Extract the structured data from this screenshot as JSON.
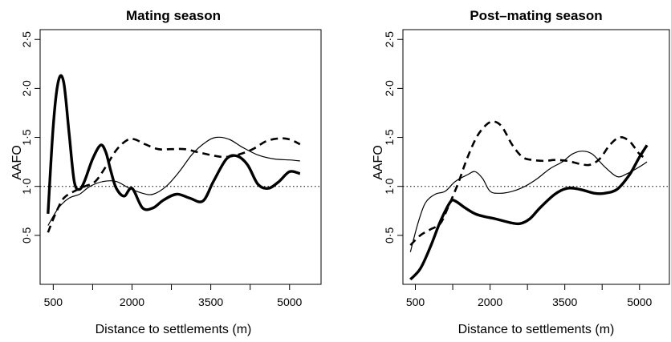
{
  "chart_data": [
    {
      "type": "line",
      "title": "Mating season",
      "xlabel": "Distance to settlements (m)",
      "ylabel": "AAFO",
      "xlim": [
        250,
        5600
      ],
      "ylim": [
        0,
        2.6
      ],
      "x_ticks": [
        500,
        1250,
        2000,
        2750,
        3500,
        4250,
        5000
      ],
      "x_tick_labels": [
        "500",
        "",
        "2000",
        "",
        "3500",
        "",
        "5000"
      ],
      "y_ticks": [
        0.5,
        1.0,
        1.5,
        2.0,
        2.5
      ],
      "y_tick_labels": [
        "0·5",
        "1·0",
        "1·5",
        "2·0",
        "2·5"
      ],
      "reference_line": 1.0,
      "grid": false,
      "series": [
        {
          "style": "thick-solid",
          "points": [
            [
              400,
              0.72
            ],
            [
              500,
              1.62
            ],
            [
              600,
              2.08
            ],
            [
              700,
              2.06
            ],
            [
              800,
              1.55
            ],
            [
              900,
              1.05
            ],
            [
              1000,
              0.97
            ],
            [
              1100,
              1.06
            ],
            [
              1250,
              1.28
            ],
            [
              1400,
              1.42
            ],
            [
              1500,
              1.35
            ],
            [
              1600,
              1.15
            ],
            [
              1700,
              0.98
            ],
            [
              1850,
              0.9
            ],
            [
              2000,
              0.98
            ],
            [
              2200,
              0.78
            ],
            [
              2400,
              0.78
            ],
            [
              2600,
              0.86
            ],
            [
              2850,
              0.92
            ],
            [
              3100,
              0.88
            ],
            [
              3350,
              0.85
            ],
            [
              3550,
              1.05
            ],
            [
              3800,
              1.28
            ],
            [
              4000,
              1.31
            ],
            [
              4200,
              1.22
            ],
            [
              4400,
              1.02
            ],
            [
              4600,
              0.98
            ],
            [
              4800,
              1.05
            ],
            [
              5000,
              1.15
            ],
            [
              5200,
              1.13
            ]
          ]
        },
        {
          "style": "thin-solid",
          "points": [
            [
              400,
              0.6
            ],
            [
              600,
              0.78
            ],
            [
              800,
              0.88
            ],
            [
              1000,
              0.92
            ],
            [
              1200,
              1.0
            ],
            [
              1450,
              1.05
            ],
            [
              1700,
              1.05
            ],
            [
              1950,
              0.98
            ],
            [
              2200,
              0.93
            ],
            [
              2400,
              0.92
            ],
            [
              2650,
              1.0
            ],
            [
              2900,
              1.15
            ],
            [
              3150,
              1.33
            ],
            [
              3400,
              1.45
            ],
            [
              3600,
              1.5
            ],
            [
              3850,
              1.48
            ],
            [
              4100,
              1.4
            ],
            [
              4400,
              1.32
            ],
            [
              4700,
              1.28
            ],
            [
              5000,
              1.27
            ],
            [
              5200,
              1.26
            ]
          ]
        },
        {
          "style": "thick-dashed",
          "points": [
            [
              400,
              0.53
            ],
            [
              550,
              0.73
            ],
            [
              700,
              0.88
            ],
            [
              900,
              0.95
            ],
            [
              1100,
              1.0
            ],
            [
              1300,
              1.05
            ],
            [
              1500,
              1.2
            ],
            [
              1700,
              1.37
            ],
            [
              1900,
              1.47
            ],
            [
              2050,
              1.48
            ],
            [
              2250,
              1.43
            ],
            [
              2500,
              1.38
            ],
            [
              2750,
              1.38
            ],
            [
              3000,
              1.38
            ],
            [
              3250,
              1.35
            ],
            [
              3500,
              1.32
            ],
            [
              3750,
              1.3
            ],
            [
              4000,
              1.32
            ],
            [
              4300,
              1.38
            ],
            [
              4550,
              1.46
            ],
            [
              4800,
              1.49
            ],
            [
              5000,
              1.48
            ],
            [
              5200,
              1.43
            ]
          ]
        }
      ]
    },
    {
      "type": "line",
      "title": "Post–mating season",
      "xlabel": "Distance to settlements (m)",
      "ylabel": "AAFO",
      "xlim": [
        250,
        5600
      ],
      "ylim": [
        0,
        2.6
      ],
      "x_ticks": [
        500,
        1250,
        2000,
        2750,
        3500,
        4250,
        5000
      ],
      "x_tick_labels": [
        "500",
        "",
        "2000",
        "",
        "3500",
        "",
        "5000"
      ],
      "y_ticks": [
        0.5,
        1.0,
        1.5,
        2.0,
        2.5
      ],
      "y_tick_labels": [
        "0·5",
        "1·0",
        "1·5",
        "2·0",
        "2·5"
      ],
      "reference_line": 1.0,
      "grid": false,
      "series": [
        {
          "style": "thick-solid",
          "points": [
            [
              400,
              0.05
            ],
            [
              600,
              0.16
            ],
            [
              800,
              0.38
            ],
            [
              1000,
              0.64
            ],
            [
              1200,
              0.84
            ],
            [
              1300,
              0.85
            ],
            [
              1500,
              0.78
            ],
            [
              1700,
              0.72
            ],
            [
              1900,
              0.69
            ],
            [
              2100,
              0.67
            ],
            [
              2400,
              0.63
            ],
            [
              2600,
              0.62
            ],
            [
              2800,
              0.67
            ],
            [
              3000,
              0.78
            ],
            [
              3300,
              0.92
            ],
            [
              3550,
              0.98
            ],
            [
              3800,
              0.97
            ],
            [
              4100,
              0.93
            ],
            [
              4300,
              0.93
            ],
            [
              4550,
              0.97
            ],
            [
              4800,
              1.12
            ],
            [
              5000,
              1.3
            ],
            [
              5150,
              1.42
            ]
          ]
        },
        {
          "style": "thin-solid",
          "points": [
            [
              400,
              0.33
            ],
            [
              550,
              0.62
            ],
            [
              700,
              0.83
            ],
            [
              900,
              0.92
            ],
            [
              1100,
              0.95
            ],
            [
              1300,
              1.05
            ],
            [
              1550,
              1.12
            ],
            [
              1700,
              1.15
            ],
            [
              1850,
              1.08
            ],
            [
              2000,
              0.95
            ],
            [
              2200,
              0.93
            ],
            [
              2450,
              0.95
            ],
            [
              2700,
              1.0
            ],
            [
              2950,
              1.08
            ],
            [
              3200,
              1.18
            ],
            [
              3450,
              1.25
            ],
            [
              3650,
              1.33
            ],
            [
              3850,
              1.36
            ],
            [
              4050,
              1.33
            ],
            [
              4300,
              1.2
            ],
            [
              4550,
              1.1
            ],
            [
              4750,
              1.13
            ],
            [
              5000,
              1.2
            ],
            [
              5150,
              1.25
            ]
          ]
        },
        {
          "style": "thick-dashed",
          "points": [
            [
              400,
              0.4
            ],
            [
              600,
              0.5
            ],
            [
              800,
              0.56
            ],
            [
              1000,
              0.62
            ],
            [
              1150,
              0.78
            ],
            [
              1350,
              1.02
            ],
            [
              1550,
              1.3
            ],
            [
              1750,
              1.52
            ],
            [
              1950,
              1.64
            ],
            [
              2100,
              1.66
            ],
            [
              2250,
              1.6
            ],
            [
              2450,
              1.42
            ],
            [
              2650,
              1.3
            ],
            [
              2850,
              1.27
            ],
            [
              3100,
              1.26
            ],
            [
              3300,
              1.27
            ],
            [
              3550,
              1.26
            ],
            [
              3800,
              1.23
            ],
            [
              4000,
              1.22
            ],
            [
              4200,
              1.28
            ],
            [
              4400,
              1.42
            ],
            [
              4600,
              1.5
            ],
            [
              4800,
              1.46
            ],
            [
              5000,
              1.33
            ],
            [
              5150,
              1.28
            ]
          ]
        }
      ]
    }
  ]
}
